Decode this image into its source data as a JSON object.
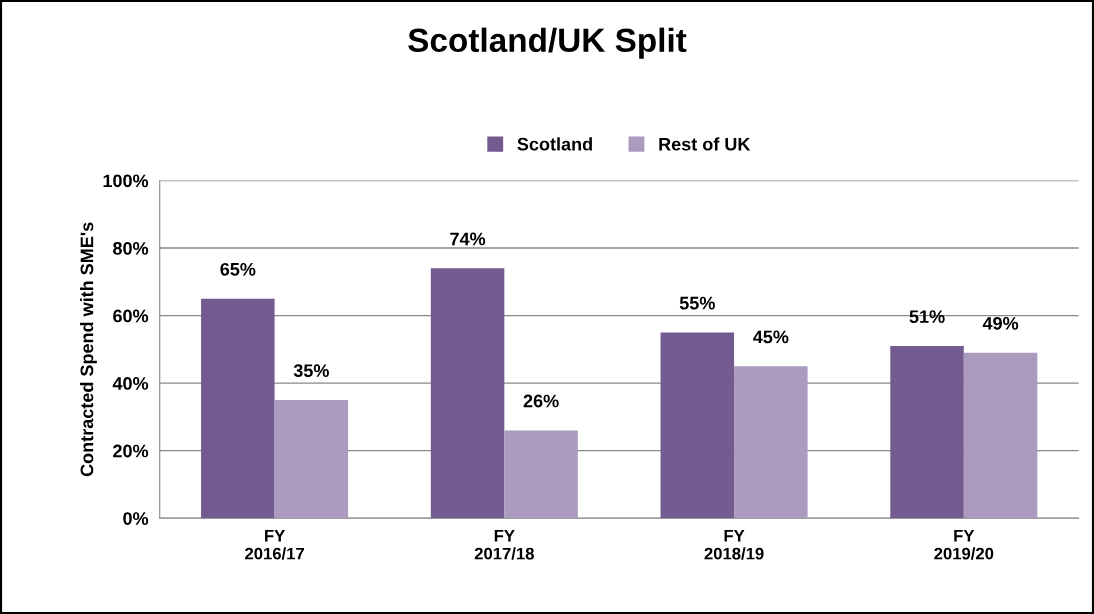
{
  "chart_data": {
    "type": "bar",
    "title": "Scotland/UK Split",
    "ylabel": "Contracted Spend with SME's",
    "categories": [
      "FY\n2016/17",
      "FY\n2017/18",
      "FY\n2018/19",
      "FY\n2019/20"
    ],
    "series": [
      {
        "name": "Scotland",
        "color": "#735a8f",
        "values": [
          65,
          74,
          55,
          51
        ],
        "value_labels": [
          "65%",
          "74%",
          "55%",
          "51%"
        ]
      },
      {
        "name": "Rest of UK",
        "color": "#aa9bbf",
        "values": [
          35,
          26,
          45,
          49
        ],
        "value_labels": [
          "35%",
          "26%",
          "45%",
          "49%"
        ]
      }
    ],
    "ylim": [
      0,
      100
    ],
    "yticks": [
      {
        "value": 0,
        "label": "0%"
      },
      {
        "value": 20,
        "label": "20%"
      },
      {
        "value": 40,
        "label": "40%"
      },
      {
        "value": 60,
        "label": "60%"
      },
      {
        "value": 80,
        "label": "80%"
      },
      {
        "value": 100,
        "label": "100%"
      }
    ],
    "grid": "y",
    "legend": "top"
  }
}
